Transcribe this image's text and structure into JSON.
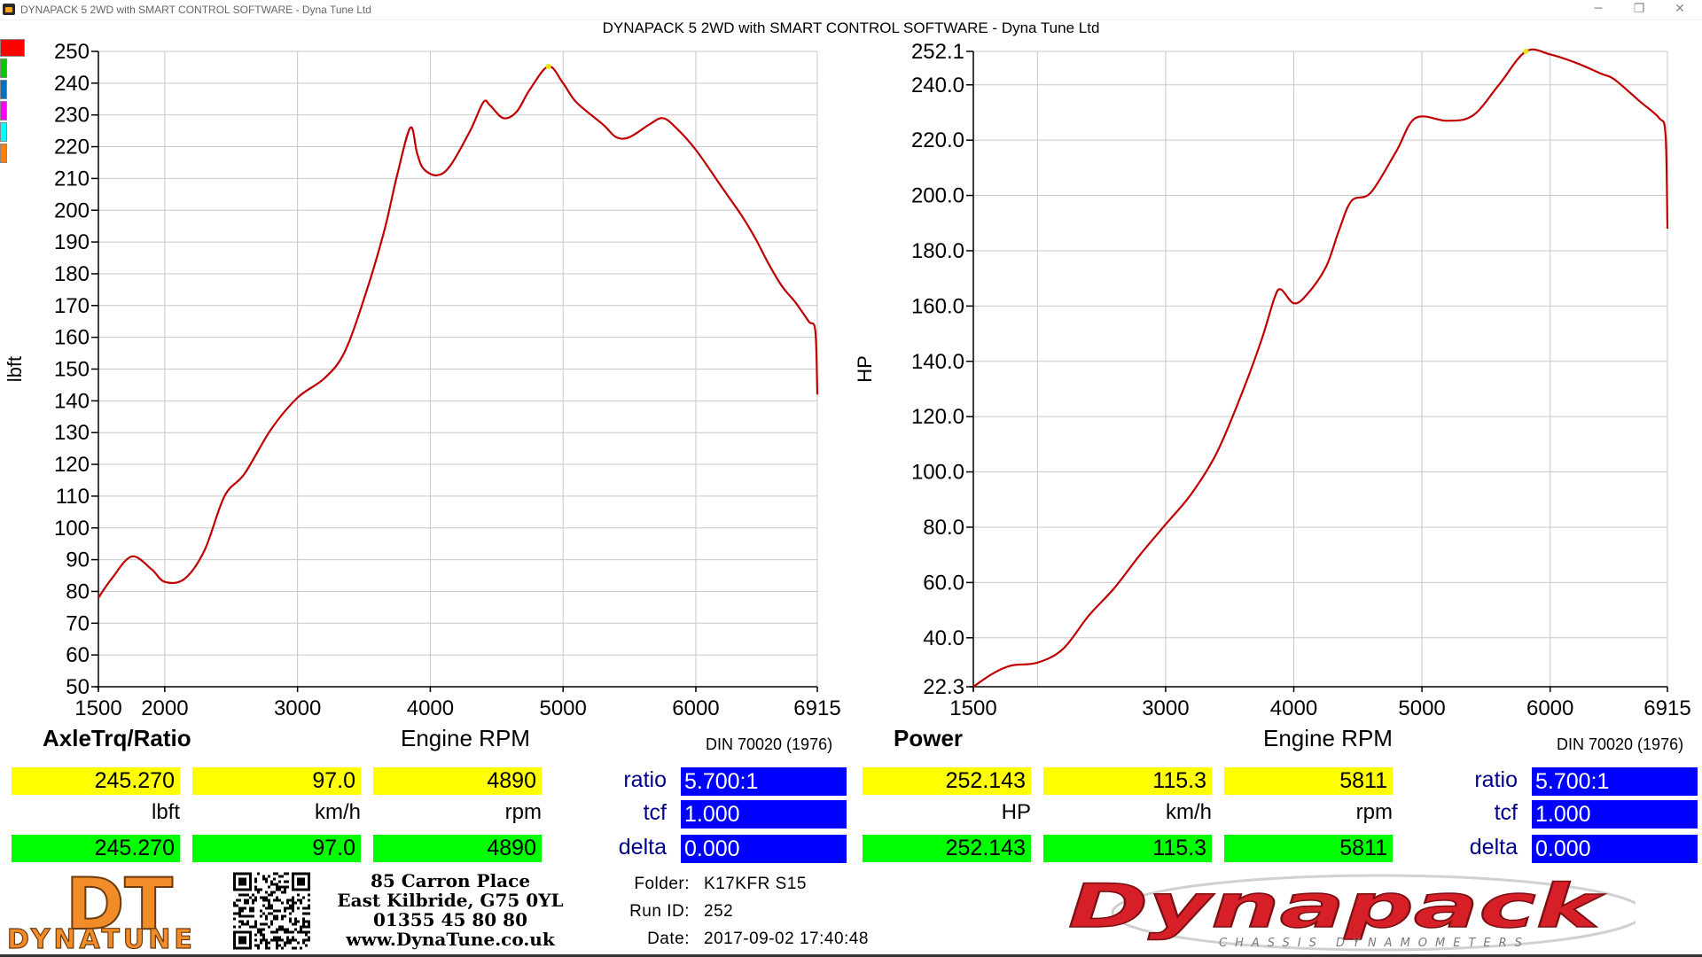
{
  "window": {
    "title": "DYNAPACK 5 2WD with SMART CONTROL SOFTWARE - Dyna Tune Ltd",
    "main_title": "DYNAPACK 5 2WD with SMART CONTROL SOFTWARE - Dyna Tune Ltd",
    "minimize": "─",
    "maximize": "❐",
    "close": "✕"
  },
  "colors": {
    "curve": "#c00000",
    "grid": "#c8c8c8",
    "yellow": "#ffff00",
    "green": "#00ff00",
    "blue": "#0000ff",
    "label_blue": "#00008b",
    "swatches": [
      "#ff0000",
      "#00cc00",
      "#0070c0",
      "#ff00ff",
      "#00ffff",
      "#ff8000"
    ]
  },
  "chart_data": [
    {
      "type": "line",
      "title": "AxleTrq/Ratio",
      "xlabel": "Engine RPM",
      "ylabel": "lbft",
      "standard": "DIN 70020 (1976)",
      "xlim": [
        1500,
        6915
      ],
      "ylim": [
        50,
        250
      ],
      "xticks": [
        1500,
        2000,
        3000,
        4000,
        5000,
        6000,
        6915
      ],
      "xtick_labels": [
        "1500",
        "2000",
        "3000",
        "4000",
        "5000",
        "6000",
        "6915"
      ],
      "yticks": [
        50,
        60,
        70,
        80,
        90,
        100,
        110,
        120,
        130,
        140,
        150,
        160,
        170,
        180,
        190,
        200,
        210,
        220,
        230,
        240,
        250
      ],
      "ytick_labels": [
        "50",
        "60",
        "70",
        "80",
        "90",
        "100",
        "110",
        "120",
        "130",
        "140",
        "150",
        "160",
        "170",
        "180",
        "190",
        "200",
        "210",
        "220",
        "230",
        "240",
        "250"
      ],
      "grid": true,
      "peak": {
        "x": 4890,
        "y": 245.27
      },
      "series": [
        {
          "x": [
            1500,
            1600,
            1750,
            1900,
            2000,
            2150,
            2300,
            2450,
            2600,
            2800,
            3000,
            3200,
            3350,
            3500,
            3650,
            3750,
            3850,
            3900,
            3950,
            4050,
            4150,
            4300,
            4400,
            4450,
            4550,
            4650,
            4750,
            4890,
            5000,
            5100,
            5300,
            5400,
            5500,
            5650,
            5750,
            5850,
            6000,
            6200,
            6350,
            6450,
            6550,
            6650,
            6750,
            6850,
            6900,
            6915
          ],
          "y": [
            78,
            84,
            91,
            87,
            83,
            84,
            93,
            110,
            117,
            131,
            141,
            147,
            155,
            172,
            193,
            211,
            226,
            218,
            213,
            211,
            214,
            225,
            234,
            233,
            229,
            231,
            238,
            245.27,
            240,
            234,
            227,
            223,
            223,
            227,
            229,
            226,
            219,
            207,
            198,
            191,
            183,
            176,
            171,
            165,
            162,
            142
          ]
        }
      ]
    },
    {
      "type": "line",
      "title": "Power",
      "xlabel": "Engine RPM",
      "ylabel": "HP",
      "standard": "DIN 70020 (1976)",
      "xlim": [
        1500,
        6915
      ],
      "ylim": [
        22.3,
        252.1
      ],
      "xticks": [
        1500,
        3000,
        4000,
        5000,
        6000,
        6915
      ],
      "xtick_labels": [
        "1500",
        "3000",
        "4000",
        "5000",
        "6000",
        "6915"
      ],
      "grid_x": [
        1500,
        2000,
        3000,
        4000,
        5000,
        6000,
        6915
      ],
      "yticks": [
        22.3,
        40,
        60,
        80,
        100,
        120,
        140,
        160,
        180,
        200,
        220,
        240,
        252.1
      ],
      "ytick_labels": [
        "22.3",
        "40.0",
        "60.0",
        "80.0",
        "100.0",
        "120.0",
        "140.0",
        "160.0",
        "180.0",
        "200.0",
        "220.0",
        "240.0",
        "252.1"
      ],
      "grid": true,
      "peak": {
        "x": 5811,
        "y": 252.143
      },
      "series": [
        {
          "x": [
            1500,
            1650,
            1800,
            2000,
            2200,
            2400,
            2600,
            2800,
            3000,
            3200,
            3400,
            3600,
            3750,
            3850,
            3900,
            4000,
            4100,
            4250,
            4350,
            4450,
            4600,
            4800,
            4950,
            5200,
            5400,
            5600,
            5811,
            6000,
            6200,
            6400,
            6500,
            6700,
            6850,
            6900,
            6915
          ],
          "y": [
            22.3,
            27,
            30,
            31,
            36,
            48,
            58,
            70,
            81,
            92,
            107,
            129,
            148,
            163,
            166,
            161,
            164,
            174,
            187,
            198,
            201,
            216,
            228,
            227,
            229,
            240,
            252.1,
            251,
            248,
            244,
            242,
            234,
            228,
            222,
            188
          ]
        }
      ]
    }
  ],
  "left_panel": {
    "title": "AxleTrq/Ratio",
    "xname": "Engine RPM",
    "standard": "DIN 70020 (1976)",
    "values_yellow": [
      "245.270",
      "97.0",
      "4890"
    ],
    "units": [
      "lbft",
      "km/h",
      "rpm"
    ],
    "values_green": [
      "245.270",
      "97.0",
      "4890"
    ],
    "params": [
      {
        "label": "ratio",
        "value": "5.700:1"
      },
      {
        "label": "tcf",
        "value": "1.000"
      },
      {
        "label": "delta",
        "value": "0.000"
      }
    ]
  },
  "right_panel": {
    "title": "Power",
    "xname": "Engine RPM",
    "standard": "DIN 70020 (1976)",
    "values_yellow": [
      "252.143",
      "115.3",
      "5811"
    ],
    "units": [
      "HP",
      "km/h",
      "rpm"
    ],
    "values_green": [
      "252.143",
      "115.3",
      "5811"
    ],
    "params": [
      {
        "label": "ratio",
        "value": "5.700:1"
      },
      {
        "label": "tcf",
        "value": "1.000"
      },
      {
        "label": "delta",
        "value": "0.000"
      }
    ]
  },
  "footer": {
    "address_lines": [
      "85 Carron Place",
      "East Kilbride, G75 0YL",
      "01355 45 80 80",
      "www.DynaTune.co.uk"
    ],
    "folder_label": "Folder:",
    "folder_value": "K17KFR S15",
    "runid_label": "Run ID:",
    "runid_value": "252",
    "date_label": "Date:",
    "date_value": "2017-09-02 17:40:48",
    "logo_left_big": "DT",
    "logo_left_text": "DYNATUNE",
    "logo_right_big": "Dynapack",
    "logo_right_sub": "CHASSIS     DYNAMOMETERS"
  }
}
